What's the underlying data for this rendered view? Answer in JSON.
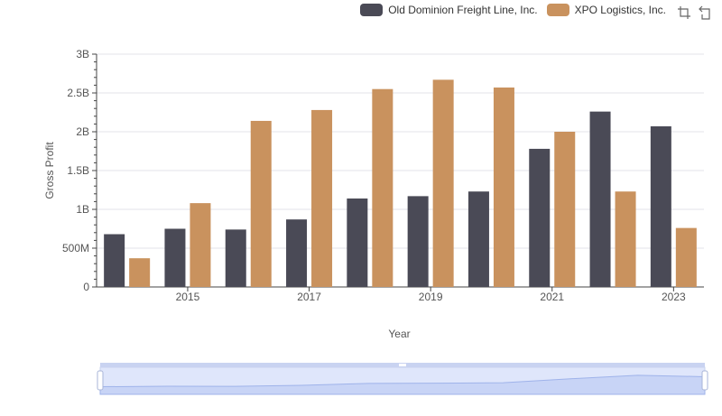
{
  "legend": {
    "items": [
      {
        "label": "Old Dominion Freight Line, Inc.",
        "color": "#4a4a56"
      },
      {
        "label": "XPO Logistics, Inc.",
        "color": "#c9925e"
      }
    ]
  },
  "toolbar": {
    "zoom_icon": "zoom-icon",
    "restore_icon": "restore-icon"
  },
  "chart_data": {
    "type": "bar",
    "categories": [
      2014,
      2015,
      2016,
      2017,
      2018,
      2019,
      2020,
      2021,
      2022,
      2023
    ],
    "series": [
      {
        "name": "Old Dominion Freight Line, Inc.",
        "color": "#4a4a56",
        "values": [
          680000000,
          750000000,
          740000000,
          870000000,
          1140000000,
          1170000000,
          1230000000,
          1780000000,
          2260000000,
          2070000000
        ]
      },
      {
        "name": "XPO Logistics, Inc.",
        "color": "#c9925e",
        "values": [
          370000000,
          1080000000,
          2140000000,
          2280000000,
          2550000000,
          2670000000,
          2570000000,
          2000000000,
          1230000000,
          760000000
        ]
      }
    ],
    "ylabel": "Gross Profit",
    "xlabel": "Year",
    "ylim": [
      0,
      3000000000
    ],
    "yticks": [
      0,
      500000000,
      1000000000,
      1500000000,
      2000000000,
      2500000000,
      3000000000
    ],
    "ytick_labels": [
      "0",
      "500M",
      "1B",
      "1.5B",
      "2B",
      "2.5B",
      "3B"
    ],
    "xticks": [
      2015,
      2017,
      2019,
      2021,
      2023
    ],
    "grid": true,
    "legend_position": "top-right",
    "has_range_slider": true
  }
}
